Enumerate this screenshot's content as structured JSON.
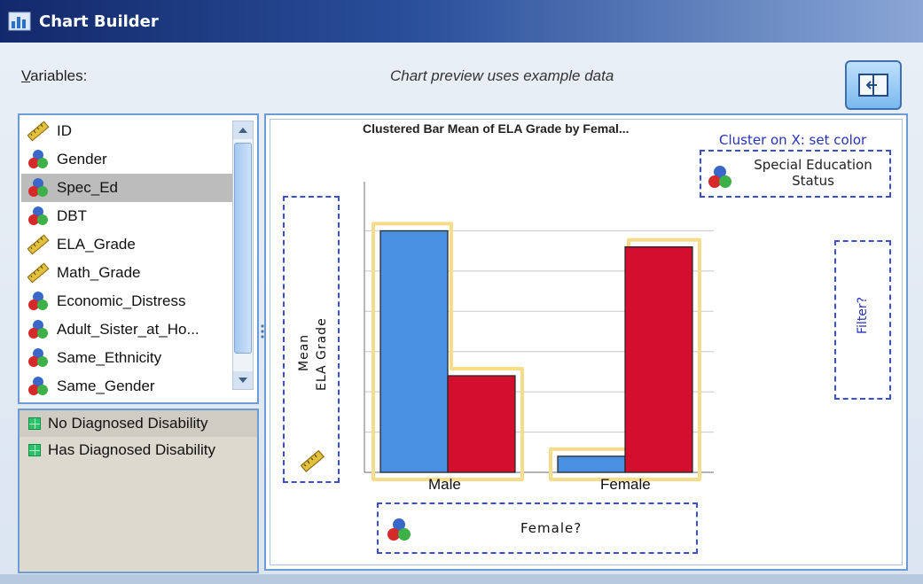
{
  "window": {
    "title": "Chart Builder"
  },
  "header": {
    "variables_label_mnemonic": "V",
    "variables_label_rest": "ariables:",
    "preview_note": "Chart preview uses example data"
  },
  "variables": [
    {
      "name": "ID",
      "icon": "ruler-icon"
    },
    {
      "name": "Gender",
      "icon": "nominal-icon"
    },
    {
      "name": "Spec_Ed",
      "icon": "nominal-icon",
      "selected": true
    },
    {
      "name": "DBT",
      "icon": "nominal-icon"
    },
    {
      "name": "ELA_Grade",
      "icon": "ruler-icon"
    },
    {
      "name": "Math_Grade",
      "icon": "ruler-icon"
    },
    {
      "name": "Economic_Distress",
      "icon": "nominal-icon"
    },
    {
      "name": "Adult_Sister_at_Ho...",
      "icon": "nominal-icon"
    },
    {
      "name": "Same_Ethnicity",
      "icon": "nominal-icon"
    },
    {
      "name": "Same_Gender",
      "icon": "nominal-icon"
    }
  ],
  "categories": [
    {
      "label": "No Diagnosed Disability"
    },
    {
      "label": "Has Diagnosed Disability"
    }
  ],
  "chart": {
    "title": "Clustered Bar Mean of ELA Grade by Femal...",
    "cluster_label": "Cluster on X: set color",
    "legend_line1": "Special Education",
    "legend_line2": "Status",
    "y_line1": "Mean",
    "y_line2": "ELA Grade",
    "filter_label": "Filter?",
    "x_drop_label": "Female?",
    "colors": {
      "series1": "#4a90e2",
      "series2": "#d40f2d",
      "highlight": "#f7dc8a"
    }
  },
  "chart_data": {
    "type": "bar",
    "categories": [
      "Male",
      "Female"
    ],
    "series": [
      {
        "values": [
          6,
          0.4
        ]
      },
      {
        "values": [
          2.4,
          5.6
        ]
      }
    ],
    "ylim": [
      0,
      7
    ]
  }
}
